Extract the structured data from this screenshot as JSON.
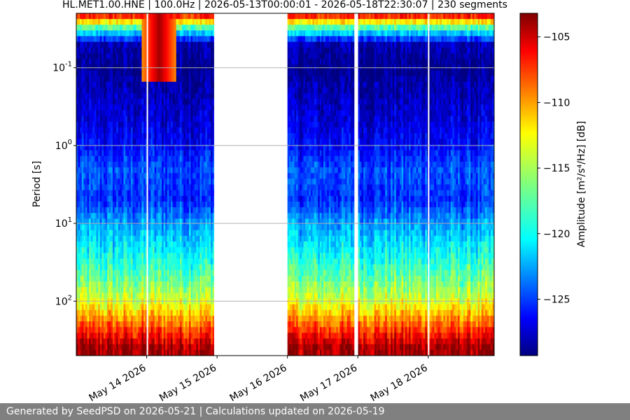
{
  "chart_data": {
    "type": "heatmap",
    "title": "HL.MET1.00.HNE | 100.0Hz | 2026-05-13T00:00:01 - 2026-05-18T22:30:07 | 230 segments",
    "ylabel": "Period [s]",
    "colorbar_label": "Amplitude [m²/s⁴/Hz] [dB]",
    "colorscale": "jet",
    "y_scale": "log",
    "y_inverted": true,
    "grid": "horizontal",
    "ylim": [
      0.02,
      500
    ],
    "xlim": [
      "2026-05-13T00:00:01",
      "2026-05-18T22:30:07"
    ],
    "clim": [
      -129.3,
      -103.2
    ],
    "colorbar_ticks": [
      "-105",
      "-110",
      "-115",
      "-120",
      "-125"
    ],
    "colorbar_tick_values": [
      -105,
      -110,
      -115,
      -120,
      -125
    ],
    "y_ticks": [
      "10^-1",
      "10^0",
      "10^1",
      "10^2"
    ],
    "y_tick_values": [
      0.1,
      1,
      10,
      100
    ],
    "x_ticks": [
      "May 14 2026",
      "May 15 2026",
      "May 16 2026",
      "May 17 2026",
      "May 18 2026"
    ],
    "x_tick_values": [
      "2026-05-14",
      "2026-05-15",
      "2026-05-16",
      "2026-05-17",
      "2026-05-18"
    ],
    "data_gaps": [
      [
        "2026-05-14T00:00",
        "2026-05-14T00:06"
      ],
      [
        "2026-05-14T23:00",
        "2026-05-16T00:00"
      ],
      [
        "2026-05-16T22:50",
        "2026-05-17T00:05"
      ],
      [
        "2026-05-17T23:55",
        "2026-05-18T00:05"
      ]
    ],
    "amplitude_profile_db": {
      "period_s": [
        0.02,
        0.03,
        0.05,
        0.1,
        0.2,
        0.5,
        1,
        2,
        5,
        10,
        20,
        50,
        100,
        200,
        400
      ],
      "amplitude_db": [
        -105,
        -117,
        -128,
        -129,
        -128,
        -127,
        -126,
        -124,
        -125,
        -122,
        -120,
        -117,
        -114,
        -109,
        -104
      ]
    },
    "events": [
      {
        "time": "2026-05-14T04:00",
        "period_range_s": [
          0.02,
          0.15
        ],
        "peak_db": -104
      }
    ]
  },
  "footer": {
    "text": "Generated by SeedPSD on 2026-05-21 | Calculations updated on 2026-05-19"
  }
}
